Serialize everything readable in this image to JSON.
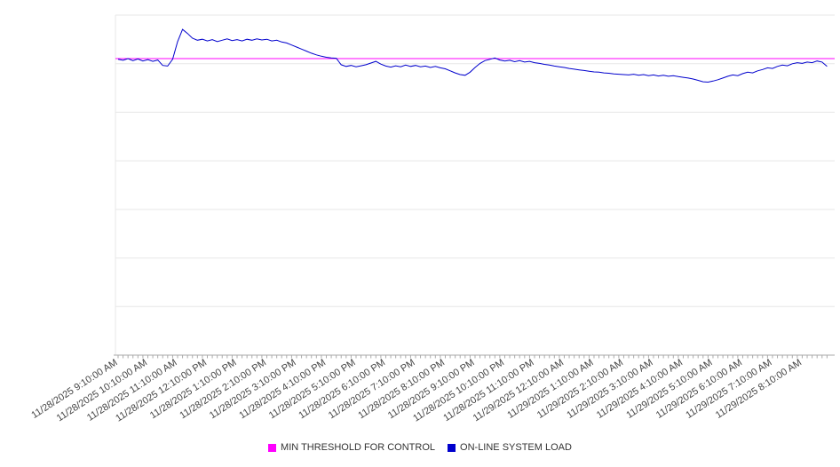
{
  "chart_data": {
    "type": "line",
    "title": "",
    "xlabel": "",
    "ylabel": "",
    "ylim": [
      0,
      100
    ],
    "grid_divisions": 7,
    "grid_on": true,
    "legend_position": "bottom-center",
    "grid_color": "#e7e7e7",
    "axis_color": "#aaaaaa",
    "label_color": "#444444",
    "points_per_label": 6,
    "x_labels": [
      "11/28/2025 9:10:00 AM",
      "11/28/2025 10:10:00 AM",
      "11/28/2025 11:10:00 AM",
      "11/28/2025 12:10:00 PM",
      "11/28/2025 1:10:00 PM",
      "11/28/2025 2:10:00 PM",
      "11/28/2025 3:10:00 PM",
      "11/28/2025 4:10:00 PM",
      "11/28/2025 5:10:00 PM",
      "11/28/2025 6:10:00 PM",
      "11/28/2025 7:10:00 PM",
      "11/28/2025 8:10:00 PM",
      "11/28/2025 9:10:00 PM",
      "11/28/2025 10:10:00 PM",
      "11/28/2025 11:10:00 PM",
      "11/29/2025 12:10:00 AM",
      "11/29/2025 1:10:00 AM",
      "11/29/2025 2:10:00 AM",
      "11/29/2025 3:10:00 AM",
      "11/29/2025 4:10:00 AM",
      "11/29/2025 5:10:00 AM",
      "11/29/2025 6:10:00 AM",
      "11/29/2025 7:10:00 AM",
      "11/29/2025 8:10:00 AM"
    ],
    "series": [
      {
        "name": "MIN THRESHOLD FOR CONTROL",
        "type": "threshold",
        "color": "#ff00ff",
        "value": 87.2
      },
      {
        "name": "ON-LINE SYSTEM LOAD",
        "type": "line",
        "color": "#0000cd",
        "values": [
          87.0,
          86.7,
          87.2,
          86.6,
          87.1,
          86.5,
          86.9,
          86.4,
          86.8,
          85.2,
          85.0,
          87.0,
          92.2,
          95.8,
          94.6,
          93.2,
          92.6,
          92.9,
          92.4,
          92.8,
          92.2,
          92.6,
          93.0,
          92.5,
          92.8,
          92.4,
          92.9,
          92.6,
          93.0,
          92.7,
          92.9,
          92.4,
          92.6,
          92.1,
          91.8,
          91.2,
          90.6,
          90.0,
          89.4,
          88.8,
          88.3,
          87.9,
          87.6,
          87.4,
          87.3,
          85.4,
          84.9,
          85.2,
          84.8,
          85.1,
          85.4,
          85.9,
          86.4,
          85.6,
          85.0,
          84.7,
          85.1,
          84.8,
          85.3,
          84.9,
          85.2,
          84.8,
          85.0,
          84.6,
          84.9,
          84.5,
          84.2,
          83.6,
          83.0,
          82.5,
          82.3,
          83.2,
          84.6,
          85.8,
          86.6,
          87.0,
          87.4,
          86.8,
          86.5,
          86.7,
          86.3,
          86.6,
          86.2,
          86.4,
          86.0,
          85.8,
          85.5,
          85.3,
          85.0,
          84.8,
          84.6,
          84.3,
          84.1,
          83.9,
          83.7,
          83.5,
          83.3,
          83.2,
          83.0,
          82.9,
          82.7,
          82.6,
          82.5,
          82.4,
          82.6,
          82.3,
          82.5,
          82.2,
          82.4,
          82.1,
          82.3,
          82.0,
          82.2,
          81.9,
          81.7,
          81.5,
          81.2,
          80.8,
          80.4,
          80.3,
          80.6,
          81.0,
          81.5,
          82.0,
          82.4,
          82.2,
          82.8,
          83.2,
          83.0,
          83.6,
          84.0,
          84.5,
          84.3,
          84.9,
          85.3,
          85.1,
          85.7,
          86.0,
          85.8,
          86.2,
          86.0,
          86.5,
          86.2,
          84.9
        ]
      }
    ]
  }
}
